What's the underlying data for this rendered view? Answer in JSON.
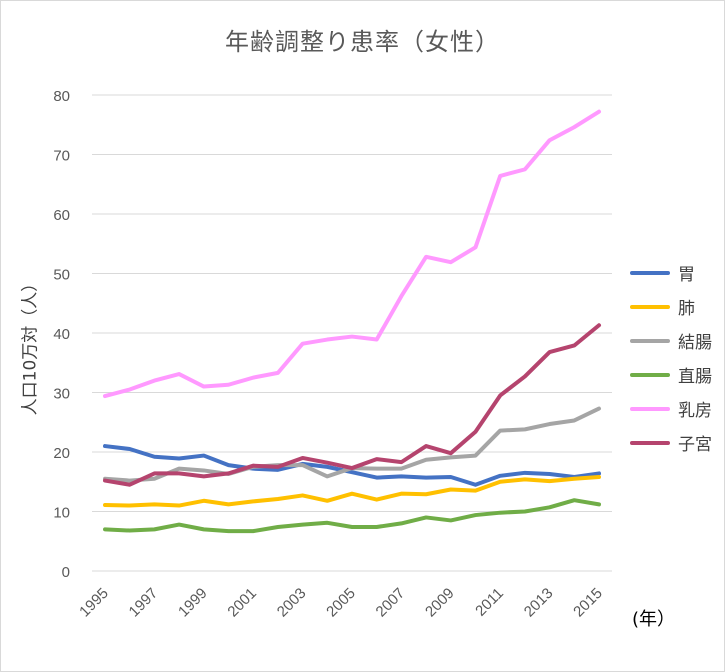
{
  "chart_data": {
    "type": "line",
    "title": "年齢調整り患率（女性）",
    "ylabel": "人口10万対（人）",
    "xlabel": "(年）",
    "ylim": [
      0,
      80
    ],
    "yticks": [
      0,
      10,
      20,
      30,
      40,
      50,
      60,
      70,
      80
    ],
    "x": [
      1995,
      1996,
      1997,
      1998,
      1999,
      2000,
      2001,
      2002,
      2003,
      2004,
      2005,
      2006,
      2007,
      2008,
      2009,
      2010,
      2011,
      2012,
      2013,
      2014,
      2015
    ],
    "xtick_labels": [
      "1995",
      "1997",
      "1999",
      "2001",
      "2003",
      "2005",
      "2007",
      "2009",
      "2011",
      "2013",
      "2015"
    ],
    "grid": true,
    "legend_position": "right",
    "series": [
      {
        "name": "胃",
        "color": "#4472c4",
        "values": [
          21.0,
          20.5,
          19.2,
          18.9,
          19.4,
          17.8,
          17.2,
          17.0,
          18.0,
          17.5,
          16.6,
          15.7,
          15.9,
          15.7,
          15.8,
          14.5,
          16.0,
          16.5,
          16.3,
          15.8,
          16.4
        ]
      },
      {
        "name": "肺",
        "color": "#ffc000",
        "values": [
          11.1,
          11.0,
          11.2,
          11.0,
          11.8,
          11.2,
          11.7,
          12.1,
          12.7,
          11.8,
          13.0,
          12.0,
          13.0,
          12.9,
          13.7,
          13.5,
          15.0,
          15.4,
          15.1,
          15.5,
          15.8
        ]
      },
      {
        "name": "結腸",
        "color": "#a5a5a5",
        "values": [
          15.5,
          15.2,
          15.5,
          17.2,
          16.9,
          16.3,
          17.5,
          17.8,
          17.8,
          15.9,
          17.3,
          17.2,
          17.2,
          18.7,
          19.1,
          19.4,
          23.6,
          23.8,
          24.7,
          25.3,
          27.3
        ]
      },
      {
        "name": "直腸",
        "color": "#70ad47",
        "values": [
          7.0,
          6.8,
          7.0,
          7.8,
          7.0,
          6.7,
          6.7,
          7.4,
          7.8,
          8.1,
          7.4,
          7.4,
          8.0,
          9.0,
          8.5,
          9.4,
          9.8,
          10.0,
          10.7,
          11.9,
          11.2
        ]
      },
      {
        "name": "乳房",
        "color": "#ff99ff",
        "values": [
          29.4,
          30.5,
          32.0,
          33.1,
          31.0,
          31.3,
          32.5,
          33.3,
          38.2,
          38.9,
          39.4,
          38.9,
          46.2,
          52.8,
          51.9,
          54.4,
          66.4,
          67.5,
          72.4,
          74.6,
          77.2
        ]
      },
      {
        "name": "子宮",
        "color": "#b5446e",
        "values": [
          15.2,
          14.5,
          16.4,
          16.4,
          15.9,
          16.4,
          17.7,
          17.5,
          19.0,
          18.2,
          17.3,
          18.8,
          18.3,
          21.0,
          19.8,
          23.4,
          29.5,
          32.7,
          36.8,
          37.9,
          41.3
        ]
      }
    ]
  }
}
